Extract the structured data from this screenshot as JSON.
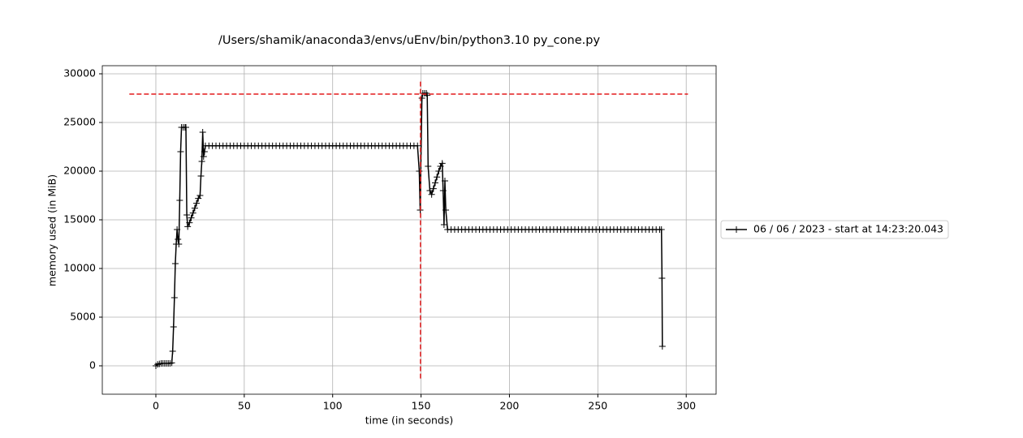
{
  "chart_data": {
    "type": "line",
    "title": "/Users/shamik/anaconda3/envs/uEnv/bin/python3.10 py_cone.py",
    "xlabel": "time (in seconds)",
    "ylabel": "memory used (in MiB)",
    "x": [
      0,
      1,
      2,
      3,
      4,
      5,
      6,
      7,
      8,
      9,
      9.5,
      10,
      10.5,
      11,
      11.5,
      12,
      12.5,
      13,
      13.5,
      14,
      14.5,
      15.5,
      16.5,
      17,
      17.5,
      18,
      19,
      20,
      21,
      22,
      23,
      24,
      25,
      25.5,
      26,
      26.5,
      27,
      27.5,
      28,
      30,
      32,
      34,
      36,
      38,
      40,
      42,
      44,
      46,
      48,
      50,
      52,
      54,
      56,
      58,
      60,
      62,
      64,
      66,
      68,
      70,
      72,
      74,
      76,
      78,
      80,
      82,
      84,
      86,
      88,
      90,
      92,
      94,
      96,
      98,
      100,
      102,
      104,
      106,
      108,
      110,
      112,
      114,
      116,
      118,
      120,
      122,
      124,
      126,
      128,
      130,
      132,
      134,
      136,
      138,
      140,
      142,
      144,
      146,
      148,
      149,
      149.5,
      150.5,
      151,
      152,
      153,
      153.5,
      154,
      155,
      156,
      157,
      158,
      159,
      160,
      161,
      162,
      162.5,
      163,
      163.5,
      164,
      165,
      167,
      169,
      171,
      173,
      175,
      177,
      179,
      181,
      183,
      185,
      187,
      189,
      191,
      193,
      195,
      197,
      199,
      201,
      203,
      205,
      207,
      209,
      211,
      213,
      215,
      217,
      219,
      221,
      223,
      225,
      227,
      229,
      231,
      233,
      235,
      237,
      239,
      241,
      243,
      245,
      247,
      249,
      251,
      253,
      255,
      257,
      259,
      261,
      263,
      265,
      267,
      269,
      271,
      273,
      275,
      277,
      279,
      281,
      283,
      285,
      286,
      286.3,
      286.5
    ],
    "series": [
      {
        "name": "06 / 06 / 2023 - start at 14:23:20.043",
        "color": "#000000",
        "values": [
          0,
          150,
          200,
          250,
          250,
          250,
          250,
          250,
          250,
          300,
          1500,
          4000,
          7000,
          10500,
          12500,
          14000,
          13000,
          12500,
          17000,
          22000,
          24500,
          24500,
          24500,
          24500,
          15500,
          14300,
          14700,
          15200,
          15700,
          16200,
          16700,
          17200,
          17500,
          19500,
          21000,
          24000,
          21500,
          22000,
          22600,
          22600,
          22600,
          22600,
          22600,
          22600,
          22600,
          22600,
          22600,
          22600,
          22600,
          22600,
          22600,
          22600,
          22600,
          22600,
          22600,
          22600,
          22600,
          22600,
          22600,
          22600,
          22600,
          22600,
          22600,
          22600,
          22600,
          22600,
          22600,
          22600,
          22600,
          22600,
          22600,
          22600,
          22600,
          22600,
          22600,
          22600,
          22600,
          22600,
          22600,
          22600,
          22600,
          22600,
          22600,
          22600,
          22600,
          22600,
          22600,
          22600,
          22600,
          22600,
          22600,
          22600,
          22600,
          22600,
          22600,
          22600,
          22600,
          22600,
          22600,
          20000,
          16000,
          27500,
          28000,
          28000,
          28000,
          27800,
          20500,
          18000,
          17600,
          18200,
          18800,
          19400,
          20000,
          20500,
          20800,
          18000,
          14500,
          19000,
          16000,
          14000,
          14000,
          14000,
          14000,
          14000,
          14000,
          14000,
          14000,
          14000,
          14000,
          14000,
          14000,
          14000,
          14000,
          14000,
          14000,
          14000,
          14000,
          14000,
          14000,
          14000,
          14000,
          14000,
          14000,
          14000,
          14000,
          14000,
          14000,
          14000,
          14000,
          14000,
          14000,
          14000,
          14000,
          14000,
          14000,
          14000,
          14000,
          14000,
          14000,
          14000,
          14000,
          14000,
          14000,
          14000,
          14000,
          14000,
          14000,
          14000,
          14000,
          14000,
          14000,
          14000,
          14000,
          14000,
          14000,
          14000,
          14000,
          14000,
          14000,
          14000,
          14000,
          9000,
          2000
        ]
      }
    ],
    "reference_lines": [
      {
        "orientation": "horizontal",
        "value": 27917,
        "from": -15,
        "to": 301,
        "color": "#e31a1c"
      },
      {
        "orientation": "vertical",
        "value": 149.7,
        "from": -1300,
        "to": 29200,
        "color": "#e31a1c"
      }
    ],
    "xlim": [
      -30.3,
      316.9
    ],
    "ylim": [
      -2917,
      30833
    ],
    "xticks": [
      0,
      50,
      100,
      150,
      200,
      250,
      300
    ],
    "yticks": [
      0,
      5000,
      10000,
      15000,
      20000,
      25000,
      30000
    ],
    "grid": true,
    "legend": "right"
  }
}
